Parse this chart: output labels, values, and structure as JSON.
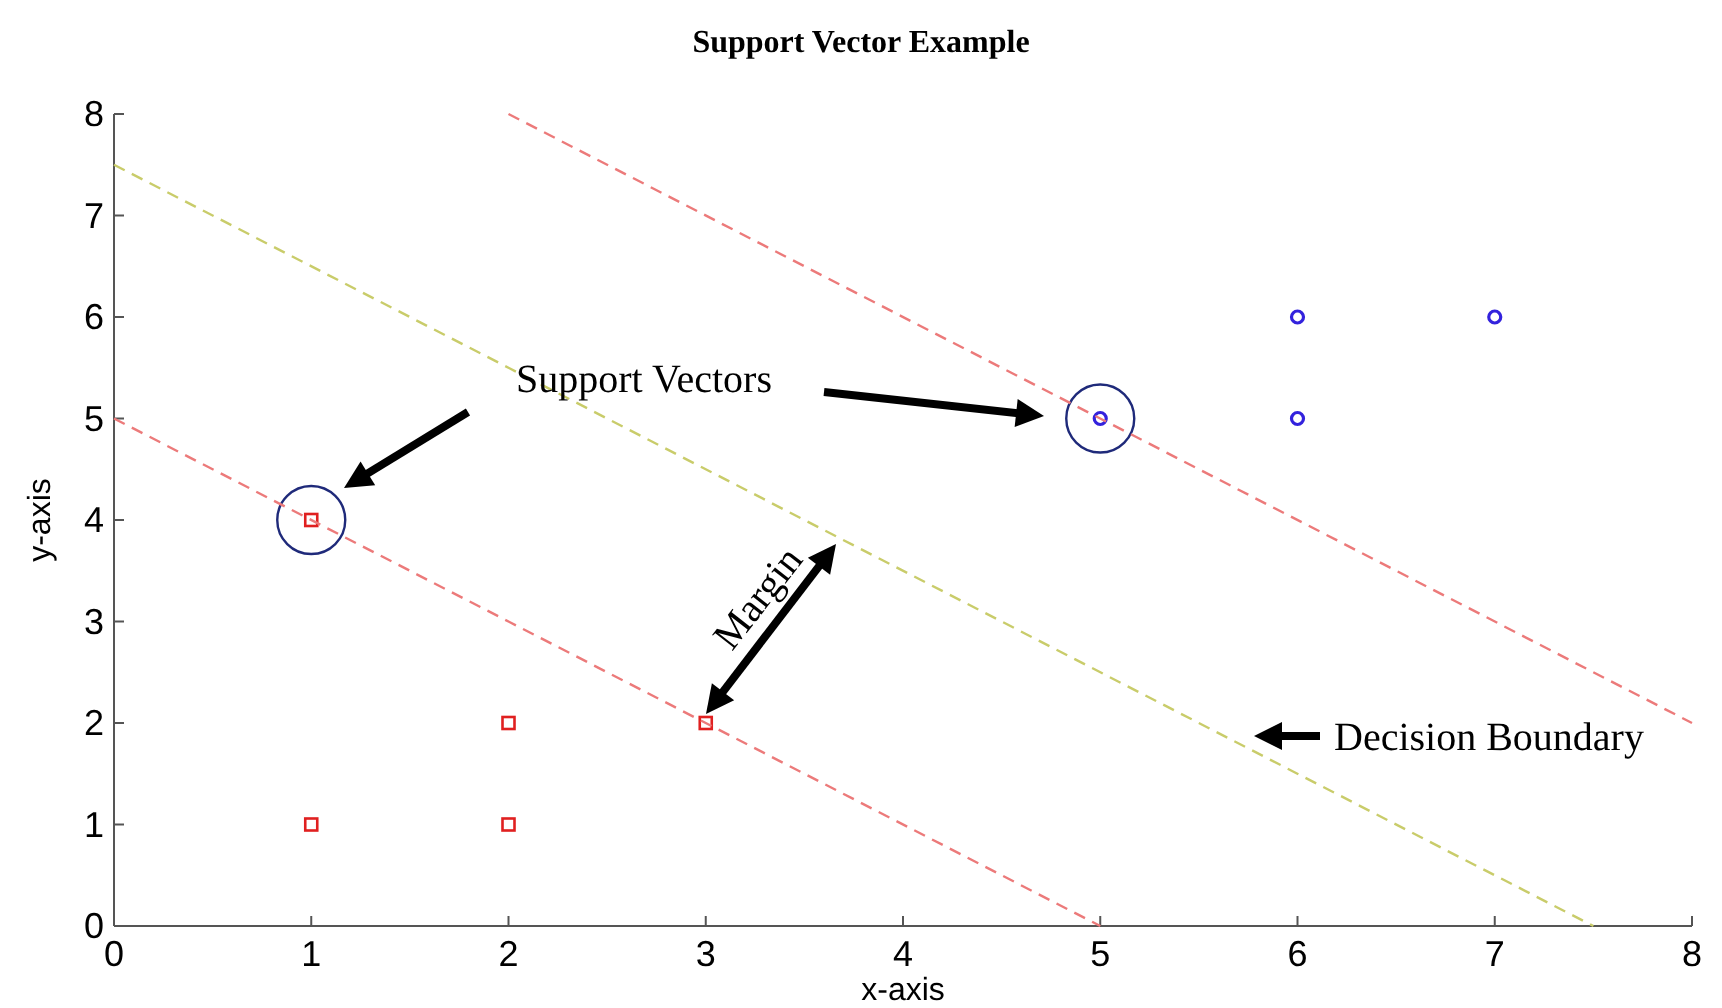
{
  "chart_data": {
    "type": "scatter",
    "title": "Support Vector Example",
    "xlabel": "x-axis",
    "ylabel": "y-axis",
    "xlim": [
      0,
      8
    ],
    "ylim": [
      0,
      8
    ],
    "xticks": [
      0,
      1,
      2,
      3,
      4,
      5,
      6,
      7,
      8
    ],
    "yticks": [
      0,
      1,
      2,
      3,
      4,
      5,
      6,
      7,
      8
    ],
    "grid": false,
    "series": [
      {
        "marker": "square",
        "color": "#e02020",
        "x": [
          1,
          2,
          2,
          3,
          1
        ],
        "values": [
          1,
          1,
          2,
          2,
          4
        ]
      },
      {
        "marker": "circle",
        "color": "#3322dd",
        "x": [
          5,
          6,
          6,
          7
        ],
        "values": [
          5,
          5,
          6,
          6
        ]
      },
      {
        "type": "bubble",
        "color": "#1f2a7a",
        "x": [
          1,
          5
        ],
        "values": [
          4,
          5
        ],
        "sizes": [
          1,
          1
        ]
      },
      {
        "type": "line",
        "line_style": "dashed",
        "marker": "none",
        "color": "#ec7a7a",
        "x": [
          0,
          5
        ],
        "values": [
          5,
          0
        ]
      },
      {
        "type": "line",
        "line_style": "dashed",
        "marker": "none",
        "color": "#ec7a7a",
        "x": [
          2,
          8
        ],
        "values": [
          8,
          2
        ]
      },
      {
        "type": "line",
        "line_style": "dashed",
        "marker": "none",
        "color": "#c9cc6a",
        "x": [
          0,
          7.5
        ],
        "values": [
          7.5,
          0
        ]
      }
    ],
    "annotations": [
      "Support Vectors",
      "Margin",
      "Decision Boundary"
    ]
  }
}
